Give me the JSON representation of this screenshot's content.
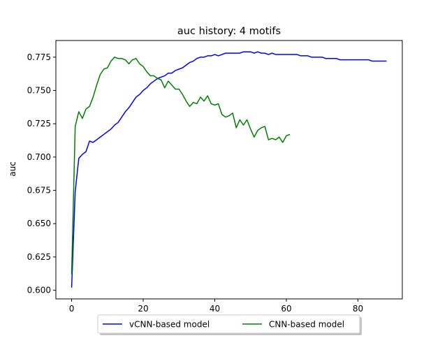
{
  "chart_data": {
    "type": "line",
    "title": "auc history:  4 motifs",
    "xlabel": "",
    "ylabel": "auc",
    "xlim": [
      -4.4,
      92.4
    ],
    "ylim": [
      0.5935,
      0.7875
    ],
    "xticks": [
      0,
      20,
      40,
      60,
      80
    ],
    "yticks": [
      0.6,
      0.625,
      0.65,
      0.675,
      0.7,
      0.725,
      0.75,
      0.775
    ],
    "xtick_labels": [
      "0",
      "20",
      "40",
      "60",
      "80"
    ],
    "ytick_labels": [
      "0.600",
      "0.625",
      "0.650",
      "0.675",
      "0.700",
      "0.725",
      "0.750",
      "0.775"
    ],
    "grid": false,
    "legend_position": "below-center",
    "series": [
      {
        "name": "vCNN-based model",
        "color": "#0000ff",
        "x": [
          0,
          1,
          2,
          3,
          4,
          5,
          6,
          7,
          8,
          9,
          10,
          11,
          12,
          13,
          14,
          15,
          16,
          17,
          18,
          19,
          20,
          21,
          22,
          23,
          24,
          25,
          26,
          27,
          28,
          29,
          30,
          31,
          32,
          33,
          34,
          35,
          36,
          37,
          38,
          39,
          40,
          41,
          42,
          43,
          44,
          45,
          46,
          47,
          48,
          49,
          50,
          51,
          52,
          53,
          54,
          55,
          56,
          57,
          58,
          59,
          60,
          61,
          62,
          63,
          64,
          65,
          66,
          67,
          68,
          69,
          70,
          71,
          72,
          73,
          74,
          75,
          76,
          77,
          78,
          79,
          80,
          81,
          82,
          83,
          84,
          85,
          86,
          87,
          88
        ],
        "y": [
          0.602,
          0.674,
          0.699,
          0.702,
          0.704,
          0.712,
          0.711,
          0.713,
          0.715,
          0.717,
          0.719,
          0.721,
          0.724,
          0.726,
          0.73,
          0.734,
          0.737,
          0.741,
          0.745,
          0.747,
          0.75,
          0.752,
          0.755,
          0.757,
          0.759,
          0.76,
          0.761,
          0.763,
          0.763,
          0.765,
          0.766,
          0.767,
          0.769,
          0.771,
          0.772,
          0.774,
          0.775,
          0.775,
          0.776,
          0.776,
          0.777,
          0.776,
          0.777,
          0.778,
          0.778,
          0.778,
          0.778,
          0.778,
          0.779,
          0.779,
          0.779,
          0.778,
          0.779,
          0.778,
          0.778,
          0.777,
          0.778,
          0.777,
          0.777,
          0.777,
          0.777,
          0.777,
          0.777,
          0.777,
          0.776,
          0.776,
          0.776,
          0.775,
          0.775,
          0.775,
          0.775,
          0.774,
          0.774,
          0.774,
          0.774,
          0.773,
          0.773,
          0.773,
          0.773,
          0.773,
          0.773,
          0.773,
          0.773,
          0.773,
          0.772,
          0.772,
          0.772,
          0.772,
          0.772
        ]
      },
      {
        "name": "CNN-based model",
        "color": "#008000",
        "x": [
          0,
          1,
          2,
          3,
          4,
          5,
          6,
          7,
          8,
          9,
          10,
          11,
          12,
          13,
          14,
          15,
          16,
          17,
          18,
          19,
          20,
          21,
          22,
          23,
          24,
          25,
          26,
          27,
          28,
          29,
          30,
          31,
          32,
          33,
          34,
          35,
          36,
          37,
          38,
          39,
          40,
          41,
          42,
          43,
          44,
          45,
          46,
          47,
          48,
          49,
          50,
          51,
          52,
          53,
          54,
          55,
          56,
          57,
          58,
          59,
          60,
          61
        ],
        "y": [
          0.612,
          0.723,
          0.734,
          0.729,
          0.736,
          0.738,
          0.745,
          0.754,
          0.762,
          0.766,
          0.767,
          0.772,
          0.775,
          0.774,
          0.774,
          0.773,
          0.77,
          0.773,
          0.774,
          0.77,
          0.768,
          0.764,
          0.761,
          0.761,
          0.759,
          0.758,
          0.752,
          0.757,
          0.754,
          0.751,
          0.751,
          0.747,
          0.742,
          0.738,
          0.741,
          0.74,
          0.745,
          0.742,
          0.746,
          0.74,
          0.739,
          0.74,
          0.732,
          0.73,
          0.731,
          0.733,
          0.722,
          0.728,
          0.724,
          0.728,
          0.721,
          0.715,
          0.72,
          0.722,
          0.723,
          0.713,
          0.714,
          0.713,
          0.715,
          0.711,
          0.716,
          0.717
        ]
      }
    ]
  }
}
